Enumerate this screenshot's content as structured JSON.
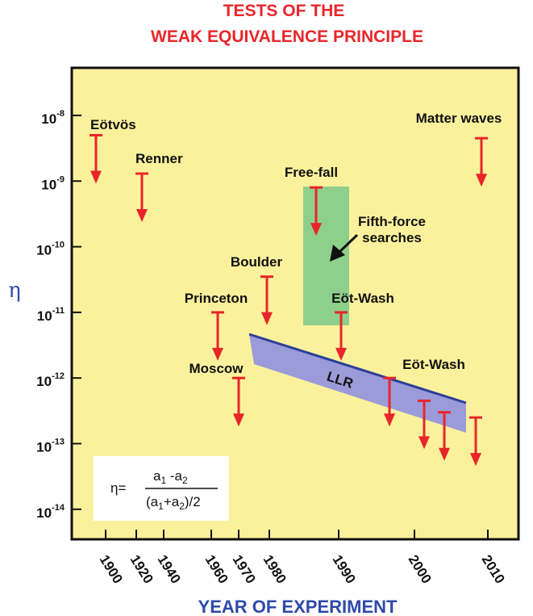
{
  "title_line1": "TESTS OF THE",
  "title_line2": "WEAK EQUIVALENCE PRINCIPLE",
  "chart_data": {
    "type": "scatter",
    "xlabel": "YEAR OF EXPERIMENT",
    "ylabel": "η",
    "y_scale": "log",
    "ylim": [
      1e-14,
      1e-08
    ],
    "x_ticks": [
      "1900",
      "1920",
      "1940",
      "1960",
      "1970",
      "1980",
      "1990",
      "2000",
      "2010"
    ],
    "y_ticks": [
      {
        "base": "10",
        "exp": "-8",
        "value": 1e-08
      },
      {
        "base": "10",
        "exp": "-9",
        "value": 1e-09
      },
      {
        "base": "10",
        "exp": "-10",
        "value": 1e-10
      },
      {
        "base": "10",
        "exp": "-11",
        "value": 1e-11
      },
      {
        "base": "10",
        "exp": "-12",
        "value": 1e-12
      },
      {
        "base": "10",
        "exp": "-13",
        "value": 1e-13
      },
      {
        "base": "10",
        "exp": "-14",
        "value": 1e-14
      }
    ],
    "limits": [
      {
        "label": "Eötvös",
        "value": 5e-09
      },
      {
        "label": "Renner",
        "value": 1.3e-09
      },
      {
        "label": "Princeton",
        "value": 1e-11
      },
      {
        "label": "Moscow",
        "value": 1e-12
      },
      {
        "label": "Boulder",
        "value": 3.5e-11
      },
      {
        "label": "Free-fall",
        "value": 8e-10
      },
      {
        "label": "Eöt-Wash",
        "value": 1e-11
      },
      {
        "label": "Eöt-Wash",
        "value": 1e-12
      },
      {
        "label": "",
        "value": 4.5e-13
      },
      {
        "label": "",
        "value": 3e-13
      },
      {
        "label": "Matter waves",
        "value": 4.5e-09
      },
      {
        "label": "",
        "value": 2.5e-13
      }
    ],
    "region_labels": {
      "fifth_force_line1": "Fifth-force",
      "fifth_force_line2": "searches",
      "llr": "LLR"
    },
    "colors": {
      "background": "#fbf19c",
      "arrow": "#e8262a",
      "fifth_force": "#8fcf8c",
      "llr_fill": "#9b9bd9",
      "llr_edge": "#2e3f9a"
    }
  },
  "formula": {
    "lhs": "η=",
    "numerator_a1": "a",
    "numerator_sub1": "1",
    "numerator_minus": " -a",
    "numerator_sub2": "2",
    "denominator_open": "(a",
    "denominator_sub1": "1",
    "denominator_plus": "+a",
    "denominator_sub2": "2",
    "denominator_close": ")/2"
  }
}
